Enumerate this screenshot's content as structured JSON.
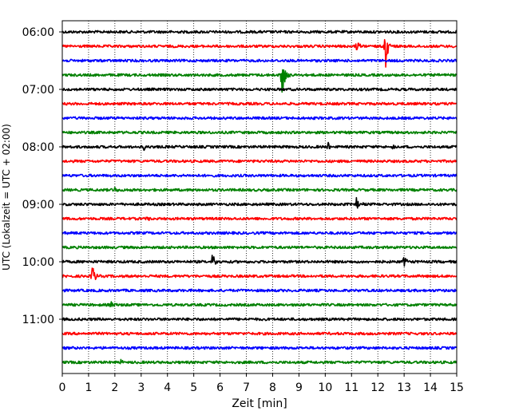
{
  "chart_data": {
    "type": "line",
    "title": "",
    "xlabel": "Zeit  [min]",
    "ylabel": "UTC (Lokalzeit = UTC + 02:00)",
    "xlim": [
      0,
      15
    ],
    "xticks": [
      "0",
      "1",
      "2",
      "3",
      "4",
      "5",
      "6",
      "7",
      "8",
      "9",
      "10",
      "11",
      "12",
      "13",
      "14",
      "15"
    ],
    "yticks": [
      "06:00",
      "07:00",
      "08:00",
      "09:00",
      "10:00",
      "11:00"
    ],
    "grid": "vertical dotted lines at each minute",
    "legend": "none",
    "trace_interval_minutes": 15,
    "trace_colors": [
      "#000000",
      "#ff0000",
      "#0000ff",
      "#008000"
    ],
    "traces": [
      {
        "start": "06:00",
        "events": []
      },
      {
        "start": "06:15",
        "events": [
          {
            "t": 11.2,
            "amp": 0.3
          },
          {
            "t": 12.3,
            "amp": 1.5
          }
        ]
      },
      {
        "start": "06:30",
        "events": []
      },
      {
        "start": "06:45",
        "events": [
          {
            "t": 8.35,
            "amp": 1.6
          }
        ]
      },
      {
        "start": "07:00",
        "events": []
      },
      {
        "start": "07:15",
        "events": []
      },
      {
        "start": "07:30",
        "events": []
      },
      {
        "start": "07:45",
        "events": []
      },
      {
        "start": "08:00",
        "events": [
          {
            "t": 3.1,
            "amp": 0.2
          },
          {
            "t": 10.1,
            "amp": 0.35
          },
          {
            "t": 12.6,
            "amp": 0.2
          }
        ]
      },
      {
        "start": "08:15",
        "events": []
      },
      {
        "start": "08:30",
        "events": []
      },
      {
        "start": "08:45",
        "events": [
          {
            "t": 2.0,
            "amp": 0.2
          }
        ]
      },
      {
        "start": "09:00",
        "events": [
          {
            "t": 11.2,
            "amp": 0.45
          }
        ]
      },
      {
        "start": "09:15",
        "events": [
          {
            "t": 3.2,
            "amp": 0.2
          }
        ]
      },
      {
        "start": "09:30",
        "events": []
      },
      {
        "start": "09:45",
        "events": []
      },
      {
        "start": "10:00",
        "events": [
          {
            "t": 5.7,
            "amp": 0.75
          },
          {
            "t": 13.0,
            "amp": 0.35
          }
        ]
      },
      {
        "start": "10:15",
        "events": [
          {
            "t": 1.15,
            "amp": 0.75
          }
        ]
      },
      {
        "start": "10:30",
        "events": []
      },
      {
        "start": "10:45",
        "events": [
          {
            "t": 1.85,
            "amp": 0.25
          }
        ]
      },
      {
        "start": "11:00",
        "events": []
      },
      {
        "start": "11:15",
        "events": []
      },
      {
        "start": "11:30",
        "events": []
      },
      {
        "start": "11:45",
        "events": [
          {
            "t": 2.2,
            "amp": 0.2
          }
        ]
      }
    ]
  }
}
